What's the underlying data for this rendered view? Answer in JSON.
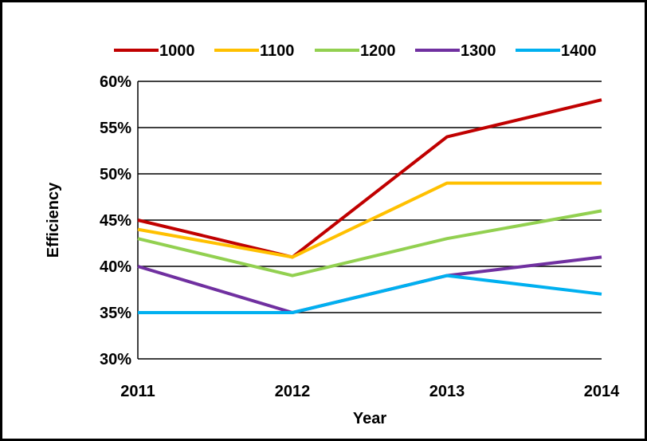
{
  "chart_data": {
    "type": "line",
    "x": [
      "2011",
      "2012",
      "2013",
      "2014"
    ],
    "xlabel": "Year",
    "ylabel": "Efficiency",
    "ylim": [
      0.3,
      0.6
    ],
    "yticks": [
      0.3,
      0.35,
      0.4,
      0.45,
      0.5,
      0.55,
      0.6
    ],
    "ytick_labels": [
      "30%",
      "35%",
      "40%",
      "45%",
      "50%",
      "55%",
      "60%"
    ],
    "grid": "horizontal",
    "legend_position": "top",
    "series": [
      {
        "name": "1000",
        "color": "#C00000",
        "values": [
          0.45,
          0.41,
          0.54,
          0.58
        ]
      },
      {
        "name": "1100",
        "color": "#FFC000",
        "values": [
          0.44,
          0.41,
          0.49,
          0.49
        ]
      },
      {
        "name": "1200",
        "color": "#92D050",
        "values": [
          0.43,
          0.39,
          0.43,
          0.46
        ]
      },
      {
        "name": "1300",
        "color": "#7030A0",
        "values": [
          0.4,
          0.35,
          0.39,
          0.41
        ]
      },
      {
        "name": "1400",
        "color": "#00B0F0",
        "values": [
          0.35,
          0.35,
          0.39,
          0.37
        ]
      }
    ]
  }
}
